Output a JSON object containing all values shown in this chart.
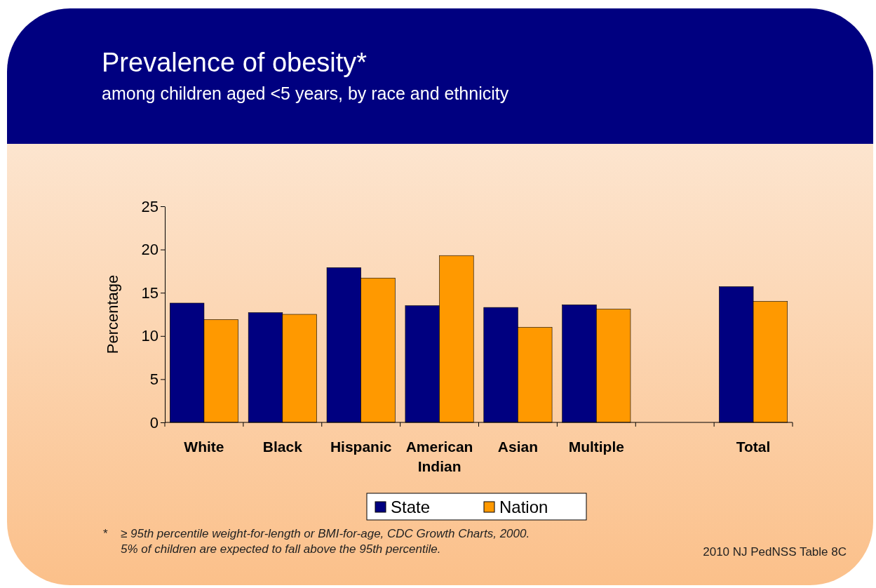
{
  "chart_data": {
    "type": "bar",
    "title": "Prevalence of obesity*",
    "subtitle": "among children aged <5 years, by race and ethnicity",
    "ylabel": "Percentage",
    "categories": [
      "White",
      "Black",
      "Hispanic",
      "American Indian",
      "Asian",
      "Multiple",
      null,
      "Total"
    ],
    "series": [
      {
        "name": "State",
        "color": "#000080",
        "values": [
          13.8,
          12.7,
          17.9,
          13.5,
          13.3,
          13.6,
          null,
          15.7
        ]
      },
      {
        "name": "Nation",
        "color": "#ff9900",
        "values": [
          11.9,
          12.5,
          16.7,
          19.3,
          11.0,
          13.1,
          null,
          14.0
        ]
      }
    ],
    "ylim": [
      0,
      25
    ],
    "yticks": [
      0,
      5,
      10,
      15,
      20,
      25
    ],
    "grid": false,
    "legend": "bottom",
    "annotations": [
      "*",
      "≥ 95th percentile weight-for-length or BMI-for-age, CDC Growth Charts, 2000.",
      "5% of children are expected to fall above the 95th percentile.",
      "2010 NJ PedNSS Table 8C"
    ]
  }
}
